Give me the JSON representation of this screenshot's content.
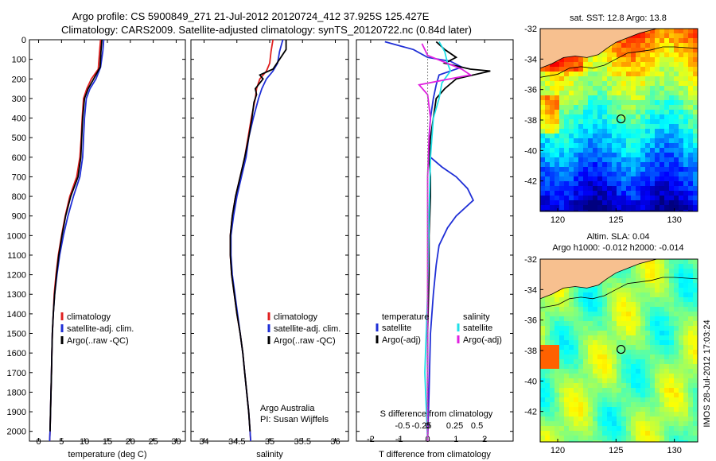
{
  "header": {
    "line1": "Argo profile: CS 5900849_271 21-Jul-2012 20120724_412 37.925S 125.427E",
    "line2": "Climatology: CARS2009. Satellite-adjusted climatology: synTS_20120722.nc (0.84d later)"
  },
  "colors": {
    "climatology": "#e02020",
    "satellite": "#1f2fd6",
    "argo": "#000000",
    "satellite_s": "#20e0e8",
    "argo_adj_s": "#e020e0",
    "land": "#f7c08f"
  },
  "chart_data": [
    {
      "type": "line",
      "id": "temp",
      "xlabel": "temperature (deg C)",
      "xlim": [
        -2,
        32
      ],
      "xticks": [
        0,
        5,
        10,
        15,
        20,
        25,
        30
      ],
      "ylim": [
        0,
        2050
      ],
      "yticks": [
        0,
        100,
        200,
        300,
        400,
        500,
        600,
        700,
        800,
        900,
        1000,
        1100,
        1200,
        1300,
        1400,
        1500,
        1600,
        1700,
        1800,
        1900,
        2000
      ],
      "legend": [
        "climatology",
        "satellite-adj. clim.",
        "Argo(..raw -QC)"
      ],
      "series": [
        {
          "name": "climatology",
          "color": "#e02020",
          "points": [
            [
              13.5,
              0
            ],
            [
              13.3,
              60
            ],
            [
              13.0,
              150
            ],
            [
              11.5,
              200
            ],
            [
              10.5,
              250
            ],
            [
              9.8,
              300
            ],
            [
              9.5,
              400
            ],
            [
              9.3,
              500
            ],
            [
              9.0,
              600
            ],
            [
              8.3,
              700
            ],
            [
              6.8,
              800
            ],
            [
              5.8,
              900
            ],
            [
              5.0,
              1000
            ],
            [
              4.3,
              1100
            ],
            [
              3.8,
              1200
            ],
            [
              3.4,
              1300
            ],
            [
              3.2,
              1400
            ],
            [
              3.0,
              1500
            ],
            [
              2.9,
              1600
            ],
            [
              2.8,
              1700
            ],
            [
              2.7,
              1800
            ],
            [
              2.6,
              1900
            ],
            [
              2.5,
              2000
            ],
            [
              2.4,
              2050
            ]
          ]
        },
        {
          "name": "satellite-adj. clim.",
          "color": "#1f2fd6",
          "points": [
            [
              14.2,
              0
            ],
            [
              14.0,
              60
            ],
            [
              13.5,
              140
            ],
            [
              12.5,
              200
            ],
            [
              11.2,
              250
            ],
            [
              10.4,
              300
            ],
            [
              10.0,
              400
            ],
            [
              9.8,
              500
            ],
            [
              9.6,
              600
            ],
            [
              9.0,
              700
            ],
            [
              7.6,
              800
            ],
            [
              6.4,
              900
            ],
            [
              5.4,
              1000
            ],
            [
              4.6,
              1100
            ],
            [
              4.0,
              1200
            ],
            [
              3.5,
              1300
            ],
            [
              3.2,
              1400
            ],
            [
              3.0,
              1500
            ],
            [
              2.9,
              1600
            ],
            [
              2.8,
              1700
            ],
            [
              2.7,
              1800
            ],
            [
              2.6,
              1900
            ],
            [
              2.5,
              2000
            ],
            [
              2.4,
              2050
            ]
          ]
        },
        {
          "name": "Argo(..raw -QC)",
          "color": "#000000",
          "points": [
            [
              13.8,
              0
            ],
            [
              13.6,
              60
            ],
            [
              13.4,
              140
            ],
            [
              12.0,
              200
            ],
            [
              10.8,
              250
            ],
            [
              10.0,
              300
            ],
            [
              9.6,
              400
            ],
            [
              9.4,
              500
            ],
            [
              9.2,
              600
            ],
            [
              8.6,
              700
            ],
            [
              7.0,
              800
            ],
            [
              5.9,
              900
            ],
            [
              5.1,
              1000
            ],
            [
              4.4,
              1100
            ],
            [
              3.9,
              1200
            ],
            [
              3.5,
              1300
            ],
            [
              3.2,
              1400
            ],
            [
              3.0,
              1500
            ],
            [
              2.9,
              1600
            ],
            [
              2.8,
              1700
            ],
            [
              2.7,
              1800
            ],
            [
              2.6,
              1900
            ],
            [
              2.5,
              2000
            ]
          ]
        }
      ]
    },
    {
      "type": "line",
      "id": "sal",
      "xlabel": "salinity",
      "xlim": [
        33.8,
        36.2
      ],
      "xticks": [
        34,
        34.5,
        35,
        35.5,
        36
      ],
      "ylim": [
        0,
        2050
      ],
      "legend": [
        "climatology",
        "satellite-adj. clim.",
        "Argo(..raw -QC)"
      ],
      "annotation": [
        "Argo Australia",
        "PI: Susan Wijffels"
      ],
      "series": [
        {
          "name": "climatology",
          "color": "#e02020",
          "points": [
            [
              35.05,
              0
            ],
            [
              35.02,
              60
            ],
            [
              35.0,
              120
            ],
            [
              34.95,
              160
            ],
            [
              34.85,
              200
            ],
            [
              34.8,
              250
            ],
            [
              34.78,
              300
            ],
            [
              34.72,
              400
            ],
            [
              34.67,
              500
            ],
            [
              34.62,
              600
            ],
            [
              34.55,
              700
            ],
            [
              34.48,
              800
            ],
            [
              34.43,
              900
            ],
            [
              34.4,
              1000
            ],
            [
              34.4,
              1100
            ],
            [
              34.42,
              1200
            ],
            [
              34.46,
              1300
            ],
            [
              34.5,
              1400
            ],
            [
              34.55,
              1500
            ],
            [
              34.59,
              1600
            ],
            [
              34.62,
              1700
            ],
            [
              34.65,
              1800
            ],
            [
              34.68,
              1900
            ],
            [
              34.7,
              2000
            ],
            [
              34.71,
              2050
            ]
          ]
        },
        {
          "name": "satellite-adj. clim.",
          "color": "#1f2fd6",
          "points": [
            [
              35.2,
              0
            ],
            [
              35.15,
              60
            ],
            [
              35.12,
              120
            ],
            [
              35.05,
              160
            ],
            [
              34.95,
              200
            ],
            [
              34.88,
              250
            ],
            [
              34.83,
              300
            ],
            [
              34.75,
              400
            ],
            [
              34.68,
              500
            ],
            [
              34.64,
              600
            ],
            [
              34.57,
              700
            ],
            [
              34.5,
              800
            ],
            [
              34.45,
              900
            ],
            [
              34.41,
              1000
            ],
            [
              34.41,
              1100
            ],
            [
              34.43,
              1200
            ],
            [
              34.47,
              1300
            ],
            [
              34.51,
              1400
            ],
            [
              34.55,
              1500
            ],
            [
              34.59,
              1600
            ],
            [
              34.62,
              1700
            ],
            [
              34.65,
              1800
            ],
            [
              34.68,
              1900
            ],
            [
              34.7,
              2000
            ],
            [
              34.71,
              2050
            ]
          ]
        },
        {
          "name": "Argo(..raw -QC)",
          "color": "#000000",
          "points": [
            [
              35.25,
              0
            ],
            [
              35.25,
              50
            ],
            [
              35.15,
              100
            ],
            [
              35.05,
              150
            ],
            [
              34.85,
              180
            ],
            [
              34.9,
              200
            ],
            [
              34.78,
              250
            ],
            [
              34.8,
              280
            ],
            [
              34.76,
              320
            ],
            [
              34.73,
              400
            ],
            [
              34.68,
              500
            ],
            [
              34.62,
              600
            ],
            [
              34.55,
              700
            ],
            [
              34.48,
              800
            ],
            [
              34.43,
              900
            ],
            [
              34.4,
              1000
            ],
            [
              34.4,
              1100
            ],
            [
              34.42,
              1200
            ],
            [
              34.46,
              1300
            ],
            [
              34.5,
              1400
            ],
            [
              34.55,
              1500
            ],
            [
              34.59,
              1600
            ],
            [
              34.62,
              1700
            ],
            [
              34.65,
              1800
            ],
            [
              34.68,
              1900
            ],
            [
              34.7,
              2000
            ]
          ]
        }
      ]
    },
    {
      "type": "line",
      "id": "diff",
      "xlabel": "T difference from climatology",
      "xlabel2": "S difference from climatology",
      "xlim": [
        -2.5,
        3
      ],
      "xticks": [
        -2,
        -1,
        0,
        1,
        2
      ],
      "xticks2": [
        -0.5,
        -0.25,
        0,
        0.25,
        0.5
      ],
      "ylim": [
        0,
        2050
      ],
      "legend_t_title": "temperature",
      "legend_s_title": "salinity",
      "legend_t": [
        "satellite",
        "Argo(-adj)"
      ],
      "legend_s": [
        "satellite",
        "Argo(-adj)"
      ],
      "series": [
        {
          "name": "T satellite",
          "color": "#1f2fd6",
          "points": [
            [
              -1.5,
              10
            ],
            [
              -0.5,
              50
            ],
            [
              0.0,
              90
            ],
            [
              0.8,
              110
            ],
            [
              1.2,
              140
            ],
            [
              0.4,
              180
            ],
            [
              0.3,
              230
            ],
            [
              0.2,
              300
            ],
            [
              0.1,
              400
            ],
            [
              0.05,
              500
            ],
            [
              0.1,
              600
            ],
            [
              0.5,
              650
            ],
            [
              1.0,
              700
            ],
            [
              1.4,
              760
            ],
            [
              1.6,
              820
            ],
            [
              1.0,
              900
            ],
            [
              0.7,
              960
            ],
            [
              0.4,
              1050
            ],
            [
              0.3,
              1150
            ],
            [
              0.2,
              1300
            ],
            [
              0.1,
              1500
            ],
            [
              0.05,
              1800
            ],
            [
              0.0,
              2050
            ]
          ]
        },
        {
          "name": "T Argo(-adj)",
          "color": "#000000",
          "points": [
            [
              0.3,
              10
            ],
            [
              0.6,
              50
            ],
            [
              1.0,
              90
            ],
            [
              0.6,
              120
            ],
            [
              1.5,
              150
            ],
            [
              2.2,
              160
            ],
            [
              1.0,
              200
            ],
            [
              0.6,
              250
            ],
            [
              0.3,
              300
            ],
            [
              0.2,
              400
            ],
            [
              0.1,
              500
            ],
            [
              0.05,
              600
            ],
            [
              0.1,
              700
            ],
            [
              0.1,
              800
            ],
            [
              0.05,
              1000
            ],
            [
              0.05,
              1200
            ],
            [
              0.0,
              1500
            ],
            [
              0.0,
              2050
            ]
          ]
        },
        {
          "name": "S satellite",
          "color": "#20e0e8",
          "points": [
            [
              0.4,
              10
            ],
            [
              0.6,
              60
            ],
            [
              0.7,
              120
            ],
            [
              0.8,
              160
            ],
            [
              0.5,
              220
            ],
            [
              0.4,
              300
            ],
            [
              0.2,
              400
            ],
            [
              0.1,
              600
            ],
            [
              0.05,
              900
            ],
            [
              0.0,
              1300
            ],
            [
              -0.1,
              1700
            ],
            [
              0.0,
              2050
            ]
          ]
        },
        {
          "name": "S Argo(-adj)",
          "color": "#e020e0",
          "points": [
            [
              -0.2,
              20
            ],
            [
              0.0,
              80
            ],
            [
              1.2,
              150
            ],
            [
              1.5,
              180
            ],
            [
              -0.3,
              230
            ],
            [
              0.0,
              280
            ],
            [
              0.1,
              400
            ],
            [
              0.05,
              500
            ],
            [
              0.0,
              700
            ],
            [
              0.0,
              1200
            ],
            [
              0.0,
              2050
            ]
          ]
        }
      ]
    },
    {
      "type": "heatmap",
      "id": "sst",
      "title": "sat. SST: 12.8  Argo: 13.8",
      "xlim": [
        118.5,
        132
      ],
      "ylim": [
        -44,
        -32
      ],
      "xticks": [
        120,
        125,
        130
      ],
      "yticks": [
        -32,
        -34,
        -36,
        -38,
        -40,
        -42
      ],
      "marker": [
        125.427,
        -37.925
      ]
    },
    {
      "type": "heatmap",
      "id": "sla",
      "title1": "Altim. SLA: 0.04",
      "title2": "Argo h1000: -0.012  h2000: -0.014",
      "xlim": [
        118.5,
        132
      ],
      "ylim": [
        -44,
        -32
      ],
      "xticks": [
        120,
        125,
        130
      ],
      "yticks": [
        -32,
        -34,
        -36,
        -38,
        -40,
        -42
      ],
      "marker": [
        125.427,
        -37.925
      ]
    }
  ],
  "side_stamp": "IMOS 28-Jul-2012 17:03:24"
}
